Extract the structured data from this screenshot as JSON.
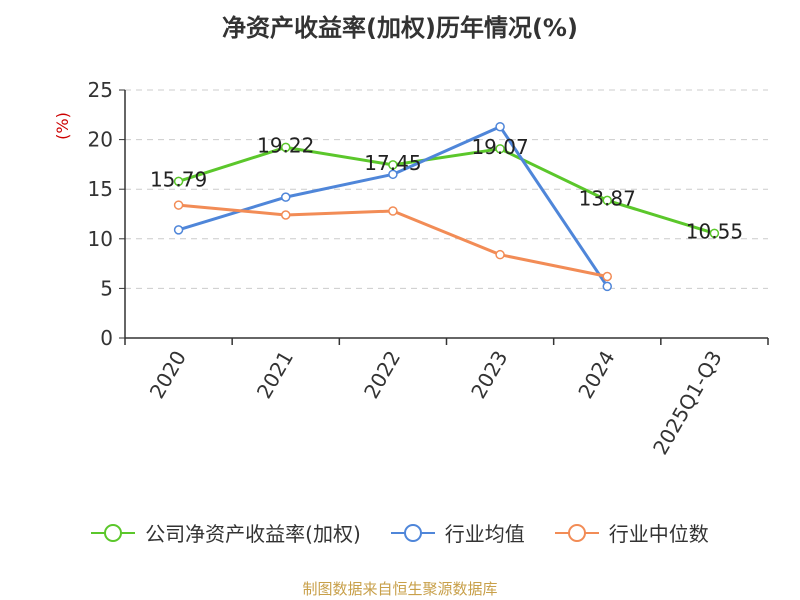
{
  "chart_data": {
    "type": "line",
    "title": "净资产收益率(加权)历年情况(%)",
    "ylabel": "(%)",
    "xlabel": "",
    "ylim": [
      0,
      25
    ],
    "yticks": [
      0,
      5,
      10,
      15,
      20,
      25
    ],
    "grid": true,
    "legend_position": "bottom",
    "categories": [
      "2020",
      "2021",
      "2022",
      "2023",
      "2024",
      "2025Q1-Q3"
    ],
    "series": [
      {
        "name": "公司净资产收益率(加权)",
        "color": "#5bc72b",
        "values": [
          15.79,
          19.22,
          17.45,
          19.07,
          13.87,
          10.55
        ],
        "labels": [
          "15.79",
          "19.22",
          "17.45",
          "19.07",
          "13.87",
          "10.55"
        ]
      },
      {
        "name": "行业均值",
        "color": "#4f86d9",
        "values": [
          10.9,
          14.2,
          16.5,
          21.3,
          5.2,
          null
        ]
      },
      {
        "name": "行业中位数",
        "color": "#f28c56",
        "values": [
          13.4,
          12.4,
          12.8,
          8.4,
          6.2,
          null
        ]
      }
    ]
  },
  "footer": {
    "source": "制图数据来自恒生聚源数据库"
  },
  "colors": {
    "ylabel": "#cc0000",
    "axis": "#333333",
    "grid": "#cccccc"
  }
}
